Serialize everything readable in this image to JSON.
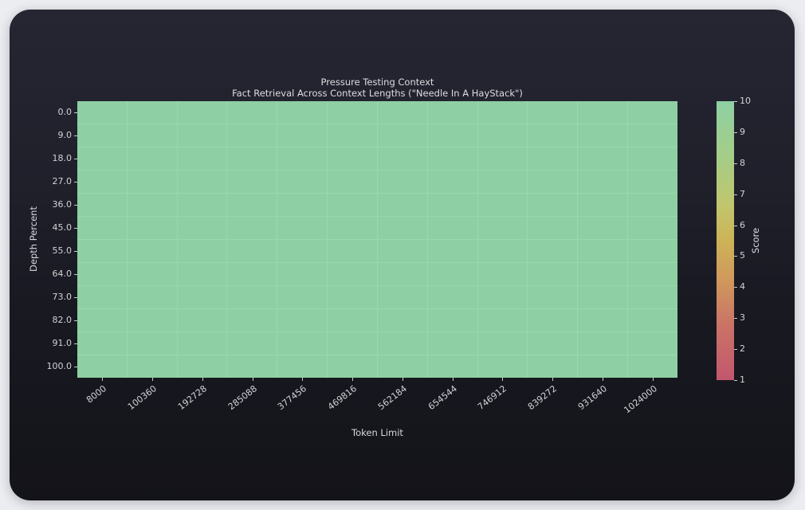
{
  "chart_data": {
    "type": "heatmap",
    "title": "Pressure Testing Context\nFact Retrieval Across Context Lengths (\"Needle In A HayStack\")",
    "title_lines": [
      "Pressure Testing Context",
      "Fact Retrieval Across Context Lengths (\"Needle In A HayStack\")"
    ],
    "xlabel": "Token Limit",
    "ylabel": "Depth Percent",
    "x_categories": [
      8000,
      100360,
      192728,
      285088,
      377456,
      469816,
      562184,
      654544,
      746912,
      839272,
      931640,
      1024000
    ],
    "y_categories": [
      0.0,
      9.0,
      18.0,
      27.0,
      36.0,
      45.0,
      55.0,
      64.0,
      73.0,
      82.0,
      91.0,
      100.0
    ],
    "x_tick_labels": [
      "8000",
      "100360",
      "192728",
      "285088",
      "377456",
      "469816",
      "562184",
      "654544",
      "746912",
      "839272",
      "931640",
      "1024000"
    ],
    "y_tick_labels": [
      "0.0",
      "9.0",
      "18.0",
      "27.0",
      "36.0",
      "45.0",
      "55.0",
      "64.0",
      "73.0",
      "82.0",
      "91.0",
      "100.0"
    ],
    "values": [
      [
        10,
        10,
        10,
        10,
        10,
        10,
        10,
        10,
        10,
        10,
        10,
        10
      ],
      [
        10,
        10,
        10,
        10,
        10,
        10,
        10,
        10,
        10,
        10,
        10,
        10
      ],
      [
        10,
        10,
        10,
        10,
        10,
        10,
        10,
        10,
        10,
        10,
        10,
        10
      ],
      [
        10,
        10,
        10,
        10,
        10,
        10,
        10,
        10,
        10,
        10,
        10,
        10
      ],
      [
        10,
        10,
        10,
        10,
        10,
        10,
        10,
        10,
        10,
        10,
        10,
        10
      ],
      [
        10,
        10,
        10,
        10,
        10,
        10,
        10,
        10,
        10,
        10,
        10,
        10
      ],
      [
        10,
        10,
        10,
        10,
        10,
        10,
        10,
        10,
        10,
        10,
        10,
        10
      ],
      [
        10,
        10,
        10,
        10,
        10,
        10,
        10,
        10,
        10,
        10,
        10,
        10
      ],
      [
        10,
        10,
        10,
        10,
        10,
        10,
        10,
        10,
        10,
        10,
        10,
        10
      ],
      [
        10,
        10,
        10,
        10,
        10,
        10,
        10,
        10,
        10,
        10,
        10,
        10
      ],
      [
        10,
        10,
        10,
        10,
        10,
        10,
        10,
        10,
        10,
        10,
        10,
        10
      ],
      [
        10,
        10,
        10,
        10,
        10,
        10,
        10,
        10,
        10,
        10,
        10,
        10
      ]
    ],
    "grid": true,
    "colorbar": {
      "label": "Score",
      "min": 1,
      "max": 10,
      "ticks": [
        10,
        9,
        8,
        7,
        6,
        5,
        4,
        3,
        2,
        1
      ],
      "gradient_stops": {
        "1": "#c2566f",
        "5.5": "#cdb356",
        "10": "#8ed0a3"
      }
    },
    "colors": {
      "cell_score_10": "#8ed0a3",
      "grid_line": "#9dd7af",
      "window_bg_top": "#262633",
      "window_bg_bottom": "#131319",
      "page_bg": "#ebedf1",
      "text": "#d8d8dd"
    }
  }
}
